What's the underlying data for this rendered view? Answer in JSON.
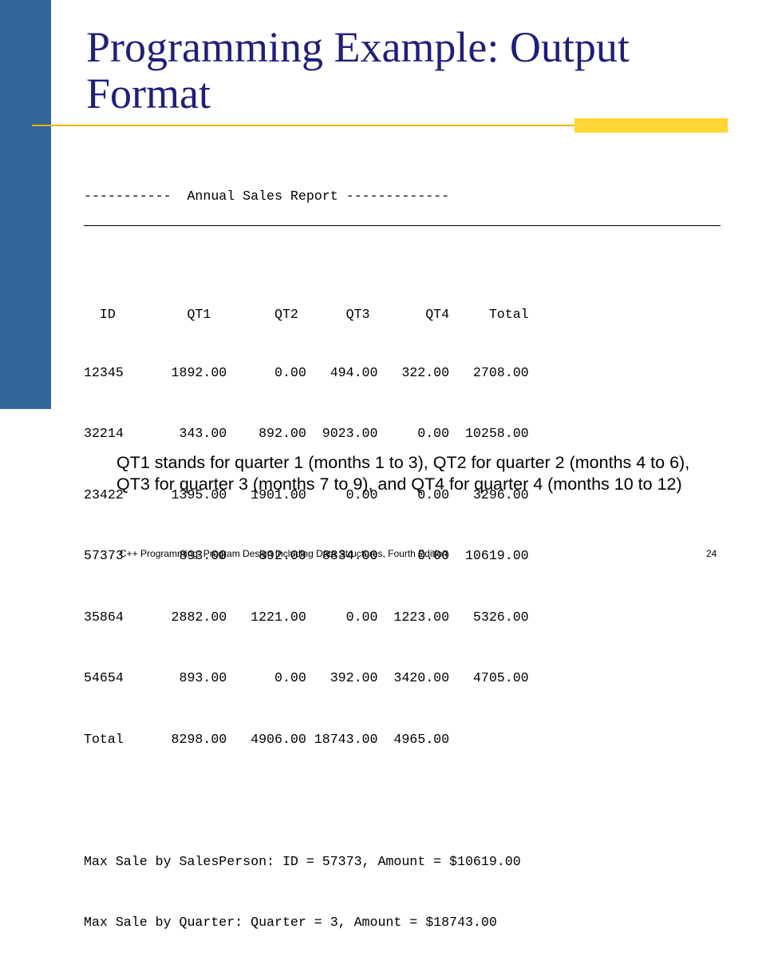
{
  "slide": {
    "title": "Programming Example: Output Format",
    "report": {
      "heading": "-----------  Annual Sales Report -------------",
      "columns": "  ID         QT1        QT2      QT3       QT4     Total",
      "rows": [
        "12345      1892.00      0.00   494.00   322.00   2708.00",
        "32214       343.00    892.00  9023.00     0.00  10258.00",
        "23422      1395.00   1901.00     0.00     0.00   3296.00",
        "57373       893.00    892.00  8834.00     0.00  10619.00",
        "35864      2882.00   1221.00     0.00  1223.00   5326.00",
        "54654       893.00      0.00   392.00  3420.00   4705.00"
      ],
      "total_row": "Total      8298.00   4906.00 18743.00  4965.00",
      "max_salesperson": "Max Sale by SalesPerson: ID = 57373, Amount = $10619.00",
      "max_quarter": "Max Sale by Quarter: Quarter = 3, Amount = $18743.00"
    },
    "note": "QT1 stands for quarter 1 (months 1 to 3), QT2 for quarter 2 (months 4 to 6), QT3 for quarter 3 (months 7 to 9), and QT4 for quarter 4 (months 10 to 12)",
    "footer": "C++ Programming: Program Design Including Data Structures, Fourth Edition",
    "page_number": "24"
  },
  "colors": {
    "sidebar": "#336699",
    "title": "#1f1f7a",
    "rule": "#e8b400",
    "accent": "#ffd633"
  }
}
